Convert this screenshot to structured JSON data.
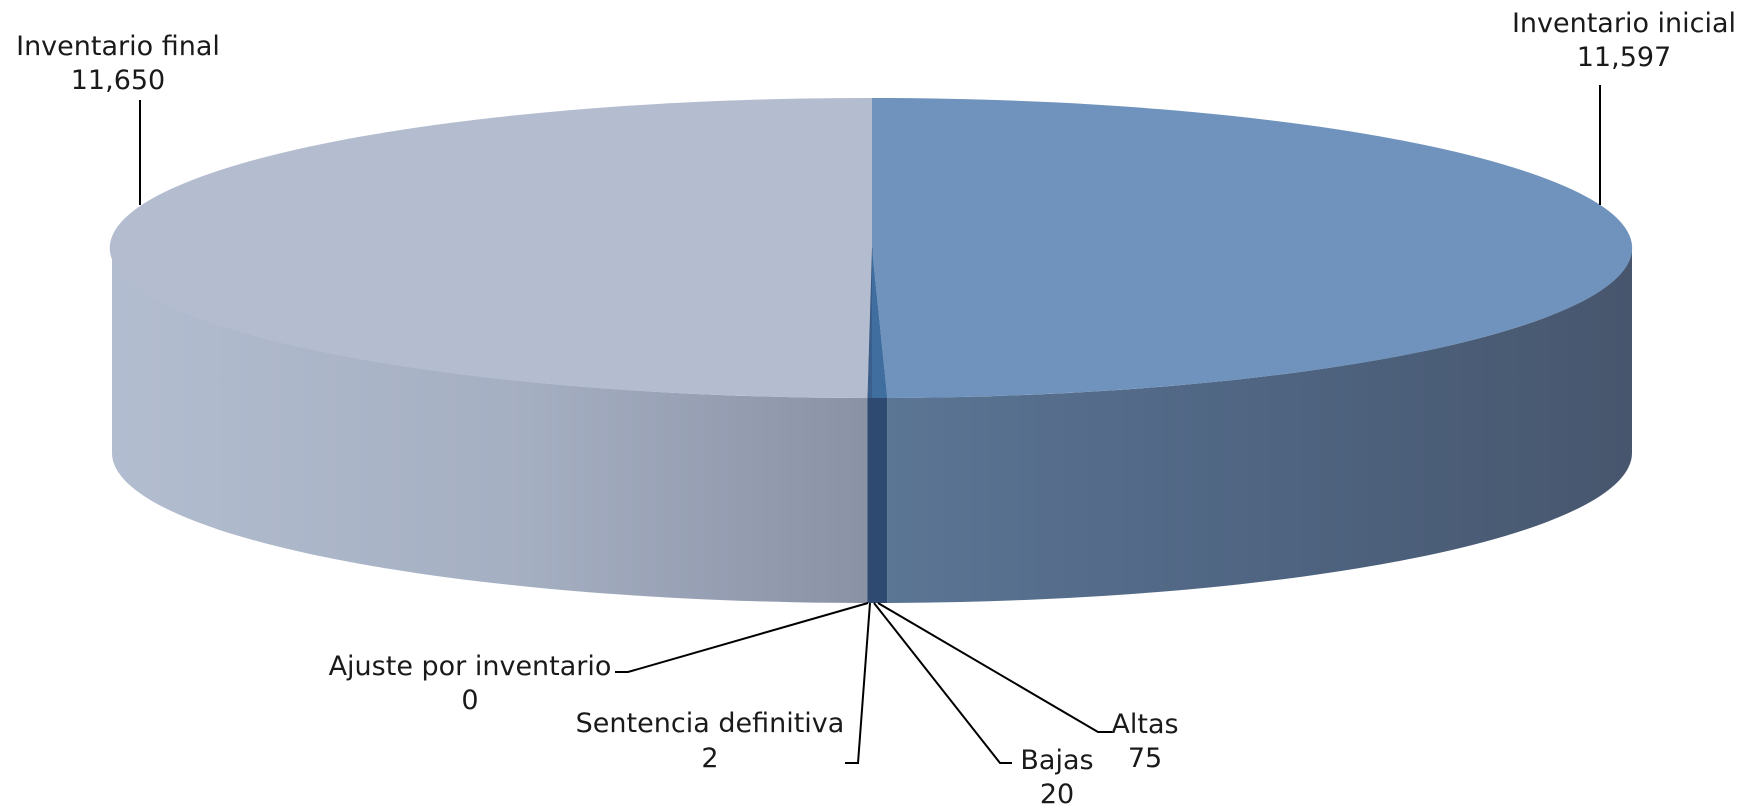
{
  "chart_data": {
    "type": "pie",
    "title": "",
    "style": "3d",
    "slices": [
      {
        "label": "Inventario inicial",
        "value": 11597,
        "display": "11,597",
        "color": "#6f93bd"
      },
      {
        "label": "Altas",
        "value": 75,
        "display": "75",
        "color": "#3f6e9f"
      },
      {
        "label": "Bajas",
        "value": 20,
        "display": "20",
        "color": "#3a5f8c"
      },
      {
        "label": "Sentencia definitiva",
        "value": 2,
        "display": "2",
        "color": "#35547c"
      },
      {
        "label": "Ajuste por inventario",
        "value": 0,
        "display": "0",
        "color": "#34527a"
      },
      {
        "label": "Inventario final",
        "value": 11650,
        "display": "11,650",
        "color": "#b4bdd0"
      }
    ]
  }
}
